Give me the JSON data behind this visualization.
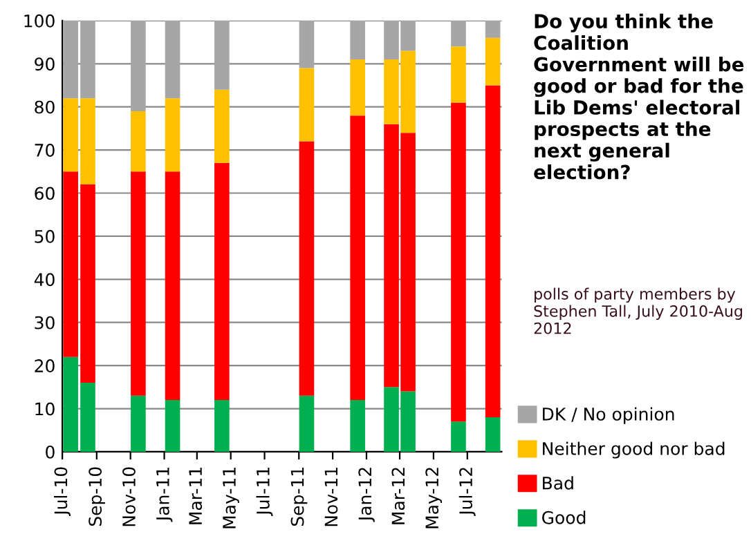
{
  "chart_data": {
    "type": "bar",
    "stacked": true,
    "title": "Do you think the Coalition Government will be good or bad for the Lib Dems' electoral prospects at the next general election?",
    "annotations": [
      "polls of party members by Stephen Tall, July 2010-Aug 2012"
    ],
    "x": [
      "2010-07-16",
      "2010-08-16",
      "2010-11-15",
      "2011-01-16",
      "2011-04-15",
      "2011-09-15",
      "2011-12-16",
      "2012-02-15",
      "2012-03-16",
      "2012-06-15",
      "2012-08-16"
    ],
    "series": [
      {
        "name": "Good",
        "color": "#00b050",
        "values": [
          22,
          16,
          13,
          12,
          12,
          13,
          12,
          15,
          14,
          7,
          8
        ]
      },
      {
        "name": "Bad",
        "color": "#ff0000",
        "values": [
          43,
          46,
          52,
          53,
          55,
          59,
          66,
          61,
          60,
          74,
          77
        ]
      },
      {
        "name": "Neither good nor bad",
        "color": "#ffc000",
        "values": [
          17,
          20,
          14,
          17,
          17,
          17,
          13,
          15,
          19,
          13,
          11
        ]
      },
      {
        "name": "DK / No opinion",
        "color": "#a6a6a6",
        "values": [
          18,
          18,
          21,
          18,
          16,
          11,
          9,
          9,
          7,
          6,
          4
        ]
      }
    ],
    "xlim": [
      "2010-07",
      "2012-09"
    ],
    "xticks": [
      {
        "value": "2010-07",
        "label": "Jul-10"
      },
      {
        "value": "2010-09",
        "label": "Sep-10"
      },
      {
        "value": "2010-11",
        "label": "Nov-10"
      },
      {
        "value": "2011-01",
        "label": "Jan-11"
      },
      {
        "value": "2011-03",
        "label": "Mar-11"
      },
      {
        "value": "2011-05",
        "label": "May-11"
      },
      {
        "value": "2011-07",
        "label": "Jul-11"
      },
      {
        "value": "2011-09",
        "label": "Sep-11"
      },
      {
        "value": "2011-11",
        "label": "Nov-11"
      },
      {
        "value": "2012-01",
        "label": "Jan-12"
      },
      {
        "value": "2012-03",
        "label": "Mar-12"
      },
      {
        "value": "2012-05",
        "label": "May-12"
      },
      {
        "value": "2012-07",
        "label": "Jul-12"
      }
    ],
    "ylim": [
      0,
      100
    ],
    "yticks": [
      0,
      10,
      20,
      30,
      40,
      50,
      60,
      70,
      80,
      90,
      100
    ],
    "grid": "y",
    "legend": "right"
  }
}
